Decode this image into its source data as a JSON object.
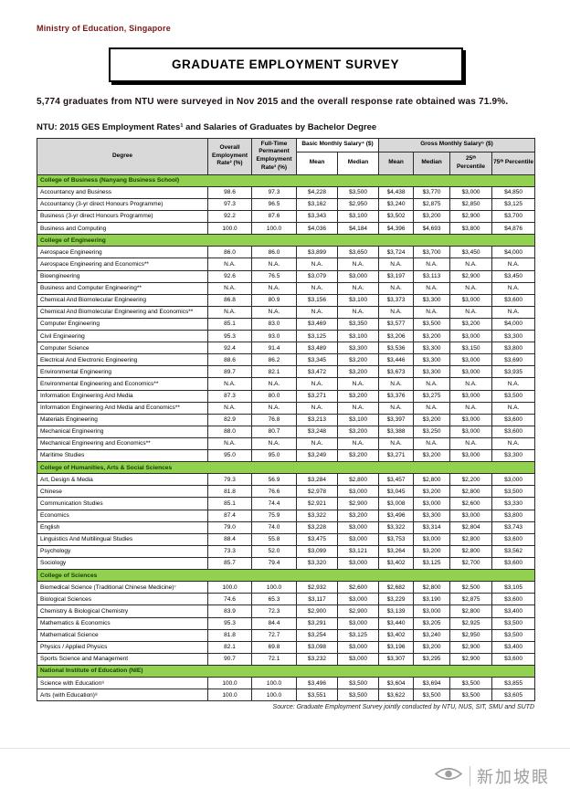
{
  "page": {
    "ministry": "Ministry of Education, Singapore",
    "banner_title": "GRADUATE EMPLOYMENT SURVEY",
    "intro": "5,774 graduates from NTU were surveyed in Nov 2015 and the overall response rate obtained was 71.9%.",
    "table_title": "NTU:  2015 GES Employment Rates¹ and Salaries of Graduates by Bachelor Degree",
    "source": "Source: Graduate Employment Survey jointly conducted by NTU, NUS, SIT, SMU and SUTD",
    "watermark": "新加坡眼"
  },
  "table": {
    "col_headers": {
      "degree": "Degree",
      "overall": "Overall Employment Rate² (%)",
      "fulltime": "Full-Time Permanent Employment Rate³ (%)",
      "basic": "Basic Monthly Salary⁴ ($)",
      "gross": "Gross Monthly Salary⁵ ($)",
      "mean": "Mean",
      "median": "Median",
      "p25": "25ᵗʰ Percentile",
      "p75": "75ᵗʰ Percentile"
    },
    "sections": [
      {
        "name": "College of Business (Nanyang Business School)",
        "rows": [
          [
            "Accountancy and Business",
            "98.6",
            "97.3",
            "$4,228",
            "$3,500",
            "$4,438",
            "$3,770",
            "$3,000",
            "$4,850"
          ],
          [
            "Accountancy (3-yr direct Honours Programme)",
            "97.3",
            "96.5",
            "$3,162",
            "$2,950",
            "$3,240",
            "$2,875",
            "$2,850",
            "$3,125"
          ],
          [
            "Business (3-yr direct Honours Programme)",
            "92.2",
            "87.6",
            "$3,343",
            "$3,100",
            "$3,502",
            "$3,200",
            "$2,900",
            "$3,700"
          ],
          [
            "Business and Computing",
            "100.0",
            "100.0",
            "$4,036",
            "$4,184",
            "$4,396",
            "$4,693",
            "$3,800",
            "$4,876"
          ]
        ]
      },
      {
        "name": "College of Engineering",
        "rows": [
          [
            "Aerospace Engineering",
            "86.0",
            "86.0",
            "$3,899",
            "$3,650",
            "$3,724",
            "$3,700",
            "$3,450",
            "$4,000"
          ],
          [
            "Aerospace Engineering and Economics**",
            "N.A.",
            "N.A.",
            "N.A.",
            "N.A.",
            "N.A.",
            "N.A.",
            "N.A.",
            "N.A."
          ],
          [
            "Bioengineering",
            "92.6",
            "76.5",
            "$3,079",
            "$3,000",
            "$3,197",
            "$3,113",
            "$2,900",
            "$3,450"
          ],
          [
            "Business and Computer Engineering**",
            "N.A.",
            "N.A.",
            "N.A.",
            "N.A.",
            "N.A.",
            "N.A.",
            "N.A.",
            "N.A."
          ],
          [
            "Chemical And Biomolecular Engineering",
            "86.8",
            "80.9",
            "$3,156",
            "$3,100",
            "$3,373",
            "$3,300",
            "$3,000",
            "$3,600"
          ],
          [
            "Chemical And Biomolecular Engineering and Economics**",
            "N.A.",
            "N.A.",
            "N.A.",
            "N.A.",
            "N.A.",
            "N.A.",
            "N.A.",
            "N.A."
          ],
          [
            "Computer Engineering",
            "85.1",
            "83.0",
            "$3,469",
            "$3,350",
            "$3,577",
            "$3,500",
            "$3,200",
            "$4,000"
          ],
          [
            "Civil Engineering",
            "95.3",
            "93.0",
            "$3,125",
            "$3,100",
            "$3,206",
            "$3,200",
            "$3,000",
            "$3,300"
          ],
          [
            "Computer Science",
            "92.4",
            "91.4",
            "$3,489",
            "$3,300",
            "$3,536",
            "$3,300",
            "$3,150",
            "$3,800"
          ],
          [
            "Electrical And Electronic Engineering",
            "88.6",
            "86.2",
            "$3,345",
            "$3,200",
            "$3,446",
            "$3,300",
            "$3,000",
            "$3,690"
          ],
          [
            "Environmental Engineering",
            "89.7",
            "82.1",
            "$3,472",
            "$3,200",
            "$3,673",
            "$3,300",
            "$3,000",
            "$3,935"
          ],
          [
            "Environmental Engineering and Economics**",
            "N.A.",
            "N.A.",
            "N.A.",
            "N.A.",
            "N.A.",
            "N.A.",
            "N.A.",
            "N.A."
          ],
          [
            "Information Engineering And Media",
            "87.3",
            "80.0",
            "$3,271",
            "$3,200",
            "$3,376",
            "$3,275",
            "$3,000",
            "$3,500"
          ],
          [
            "Information Engineering And Media and Economics**",
            "N.A.",
            "N.A.",
            "N.A.",
            "N.A.",
            "N.A.",
            "N.A.",
            "N.A.",
            "N.A."
          ],
          [
            "Materials Engineering",
            "82.9",
            "76.8",
            "$3,213",
            "$3,100",
            "$3,397",
            "$3,200",
            "$3,000",
            "$3,600"
          ],
          [
            "Mechanical Engineering",
            "88.0",
            "80.7",
            "$3,248",
            "$3,200",
            "$3,388",
            "$3,250",
            "$3,000",
            "$3,600"
          ],
          [
            "Mechanical Engineering and Economics**",
            "N.A.",
            "N.A.",
            "N.A.",
            "N.A.",
            "N.A.",
            "N.A.",
            "N.A.",
            "N.A."
          ],
          [
            "Maritime Studies",
            "95.0",
            "95.0",
            "$3,249",
            "$3,200",
            "$3,271",
            "$3,200",
            "$3,000",
            "$3,300"
          ]
        ]
      },
      {
        "name": "College of Humanities, Arts & Social Sciences",
        "rows": [
          [
            "Art, Design & Media",
            "79.3",
            "56.9",
            "$3,284",
            "$2,800",
            "$3,457",
            "$2,800",
            "$2,200",
            "$3,000"
          ],
          [
            "Chinese",
            "81.8",
            "76.6",
            "$2,978",
            "$3,000",
            "$3,045",
            "$3,200",
            "$2,800",
            "$3,500"
          ],
          [
            "Communication Studies",
            "85.1",
            "74.4",
            "$2,921",
            "$2,900",
            "$3,008",
            "$3,000",
            "$2,600",
            "$3,330"
          ],
          [
            "Economics",
            "87.4",
            "75.9",
            "$3,322",
            "$3,200",
            "$3,496",
            "$3,300",
            "$3,000",
            "$3,800"
          ],
          [
            "English",
            "79.0",
            "74.0",
            "$3,228",
            "$3,000",
            "$3,322",
            "$3,314",
            "$2,804",
            "$3,743"
          ],
          [
            "Linguistics And Multilingual Studies",
            "88.4",
            "55.8",
            "$3,475",
            "$3,000",
            "$3,753",
            "$3,000",
            "$2,800",
            "$3,600"
          ],
          [
            "Psychology",
            "73.3",
            "52.0",
            "$3,099",
            "$3,121",
            "$3,264",
            "$3,200",
            "$2,800",
            "$3,562"
          ],
          [
            "Sociology",
            "85.7",
            "79.4",
            "$3,320",
            "$3,000",
            "$3,402",
            "$3,125",
            "$2,700",
            "$3,600"
          ]
        ]
      },
      {
        "name": "College of Sciences",
        "rows": [
          [
            "Biomedical Science (Traditional Chinese Medicine)⁷",
            "100.0",
            "100.0",
            "$2,932",
            "$2,600",
            "$2,682",
            "$2,800",
            "$2,500",
            "$3,105"
          ],
          [
            "Biological Sciences",
            "74.6",
            "65.3",
            "$3,117",
            "$3,000",
            "$3,229",
            "$3,190",
            "$2,875",
            "$3,600"
          ],
          [
            "Chemistry & Biological Chemistry",
            "83.9",
            "72.3",
            "$2,900",
            "$2,900",
            "$3,139",
            "$3,000",
            "$2,800",
            "$3,400"
          ],
          [
            "Mathematics & Economics",
            "95.3",
            "84.4",
            "$3,291",
            "$3,000",
            "$3,440",
            "$3,205",
            "$2,925",
            "$3,500"
          ],
          [
            "Mathematical Science",
            "81.8",
            "72.7",
            "$3,254",
            "$3,125",
            "$3,402",
            "$3,240",
            "$2,950",
            "$3,500"
          ],
          [
            "Physics / Applied Physics",
            "82.1",
            "69.8",
            "$3,098",
            "$3,000",
            "$3,196",
            "$3,200",
            "$2,900",
            "$3,400"
          ],
          [
            "Sports Science and Management",
            "90.7",
            "72.1",
            "$3,232",
            "$3,000",
            "$3,307",
            "$3,295",
            "$2,900",
            "$3,600"
          ]
        ]
      },
      {
        "name": "National Institute of Education (NIE)",
        "rows": [
          [
            "Science with Education⁸",
            "100.0",
            "100.0",
            "$3,496",
            "$3,500",
            "$3,604",
            "$3,694",
            "$3,500",
            "$3,855"
          ],
          [
            "Arts (with Education)⁸",
            "100.0",
            "100.0",
            "$3,551",
            "$3,500",
            "$3,622",
            "$3,500",
            "$3,500",
            "$3,605"
          ]
        ]
      }
    ]
  }
}
